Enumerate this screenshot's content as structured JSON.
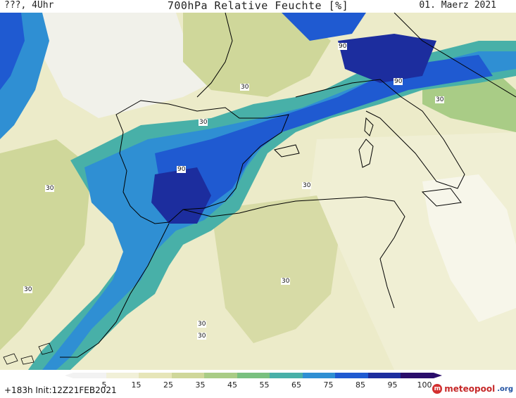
{
  "header": {
    "left": "???, 4Uhr",
    "title": "700hPa Relative Feuchte [%]",
    "date": "01. Maerz 2021"
  },
  "map": {
    "contour_labels": [
      "90",
      "90",
      "30",
      "30",
      "90",
      "30",
      "30",
      "30",
      "30",
      "30",
      "30",
      "30"
    ]
  },
  "colorbar": {
    "ticks": [
      "5",
      "15",
      "25",
      "35",
      "45",
      "55",
      "65",
      "75",
      "85",
      "95",
      "100"
    ],
    "colors": [
      "#f2f2f2",
      "#f1f0d8",
      "#e6e5b8",
      "#cfd79a",
      "#a9cc86",
      "#79c07f",
      "#48b0a8",
      "#2f8fd3",
      "#1f5ad1",
      "#1c2d9e",
      "#2a0d6b"
    ]
  },
  "footer": {
    "init": "+183h Init:12Z21FEB2021",
    "logo_main": "meteopool",
    "logo_tld": ".org"
  }
}
